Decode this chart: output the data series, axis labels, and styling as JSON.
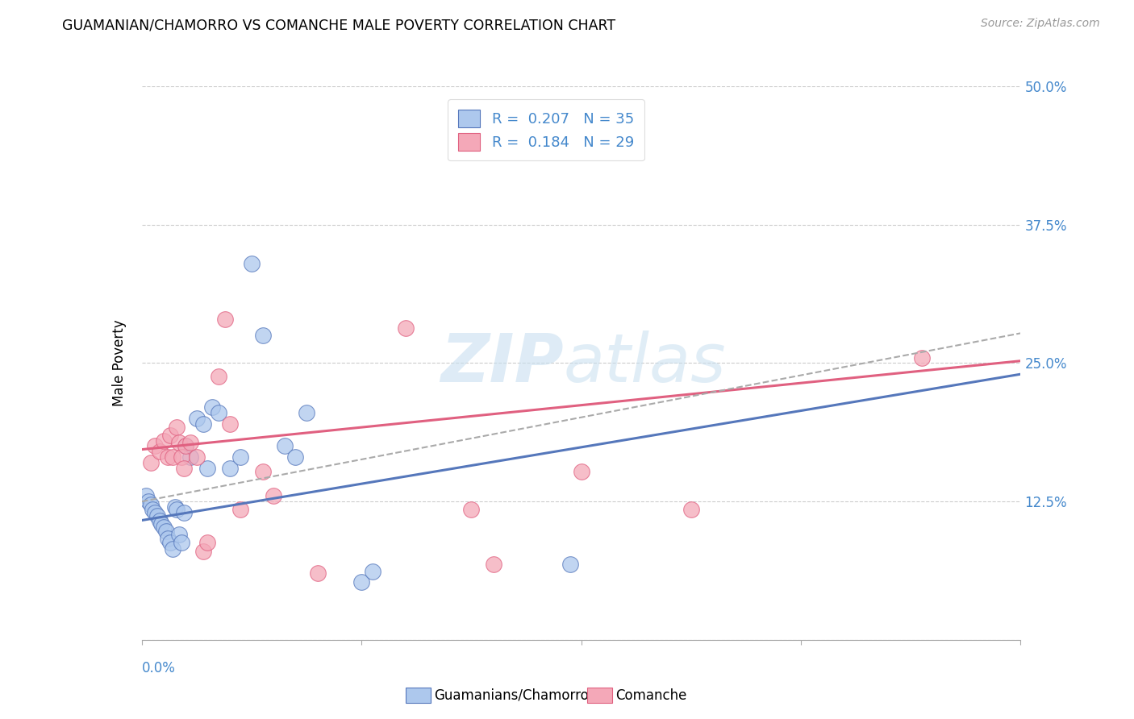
{
  "title": "GUAMANIAN/CHAMORRO VS COMANCHE MALE POVERTY CORRELATION CHART",
  "source": "Source: ZipAtlas.com",
  "ylabel": "Male Poverty",
  "yticks": [
    0.0,
    0.125,
    0.25,
    0.375,
    0.5
  ],
  "ytick_labels": [
    "",
    "12.5%",
    "25.0%",
    "37.5%",
    "50.0%"
  ],
  "xlim": [
    0.0,
    0.4
  ],
  "ylim": [
    0.0,
    0.5
  ],
  "legend_R1": "0.207",
  "legend_N1": "35",
  "legend_R2": "0.184",
  "legend_N2": "29",
  "watermark_zip": "ZIP",
  "watermark_atlas": "atlas",
  "guamanian_color": "#adc8ed",
  "comanche_color": "#f4a8b8",
  "trend_blue": "#5577bb",
  "trend_pink": "#e06080",
  "trend_gray": "#aaaaaa",
  "background_color": "#ffffff",
  "guamanians_x": [
    0.002,
    0.003,
    0.004,
    0.005,
    0.006,
    0.007,
    0.008,
    0.009,
    0.01,
    0.011,
    0.012,
    0.013,
    0.014,
    0.015,
    0.016,
    0.017,
    0.018,
    0.019,
    0.02,
    0.022,
    0.025,
    0.028,
    0.03,
    0.032,
    0.035,
    0.04,
    0.045,
    0.05,
    0.055,
    0.065,
    0.07,
    0.075,
    0.1,
    0.105,
    0.195
  ],
  "guamanians_y": [
    0.13,
    0.125,
    0.122,
    0.118,
    0.115,
    0.112,
    0.108,
    0.105,
    0.102,
    0.098,
    0.092,
    0.088,
    0.082,
    0.12,
    0.118,
    0.095,
    0.088,
    0.115,
    0.175,
    0.165,
    0.2,
    0.195,
    0.155,
    0.21,
    0.205,
    0.155,
    0.165,
    0.34,
    0.275,
    0.175,
    0.165,
    0.205,
    0.052,
    0.062,
    0.068
  ],
  "comanche_x": [
    0.004,
    0.006,
    0.008,
    0.01,
    0.012,
    0.013,
    0.014,
    0.016,
    0.017,
    0.018,
    0.019,
    0.02,
    0.022,
    0.025,
    0.028,
    0.03,
    0.035,
    0.038,
    0.04,
    0.045,
    0.055,
    0.06,
    0.08,
    0.12,
    0.15,
    0.16,
    0.2,
    0.25,
    0.355
  ],
  "comanche_y": [
    0.16,
    0.175,
    0.17,
    0.18,
    0.165,
    0.185,
    0.165,
    0.192,
    0.178,
    0.165,
    0.155,
    0.175,
    0.178,
    0.165,
    0.08,
    0.088,
    0.238,
    0.29,
    0.195,
    0.118,
    0.152,
    0.13,
    0.06,
    0.282,
    0.118,
    0.068,
    0.152,
    0.118,
    0.255
  ],
  "slope_blue": 0.33,
  "intercept_blue": 0.108,
  "slope_pink": 0.2,
  "intercept_pink": 0.172,
  "slope_gray": 0.38,
  "intercept_gray": 0.125
}
